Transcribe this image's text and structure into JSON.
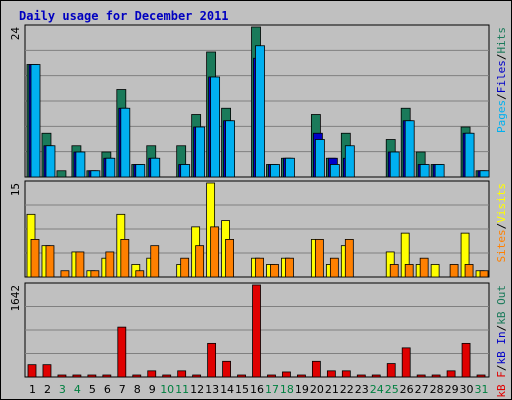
{
  "title": "Daily usage for December 2011",
  "colors": {
    "hits": "#1a7a5a",
    "files": "#0000c8",
    "pages": "#00b0f0",
    "visits": "#ffff00",
    "sites": "#ff8000",
    "kbytes": "#e00000",
    "background": "#c0c0c0",
    "grid": "#808080"
  },
  "chart_data": [
    {
      "type": "bar",
      "panel": "top",
      "ymax_label": "24",
      "legend": [
        {
          "label": "Pages",
          "color": "#00b0f0"
        },
        {
          "label": "Files",
          "color": "#0000c8"
        },
        {
          "label": "Hits",
          "color": "#1a7a5a"
        }
      ],
      "separator": "/",
      "ylim": [
        0,
        24
      ],
      "categories": [
        "1",
        "2",
        "3",
        "4",
        "5",
        "6",
        "7",
        "8",
        "9",
        "10",
        "11",
        "12",
        "13",
        "14",
        "15",
        "16",
        "17",
        "18",
        "19",
        "20",
        "21",
        "22",
        "23",
        "24",
        "25",
        "26",
        "27",
        "28",
        "29",
        "30",
        "31"
      ],
      "series": [
        {
          "name": "Hits",
          "values": [
            18,
            7,
            1,
            5,
            1,
            4,
            14,
            2,
            5,
            0,
            5,
            10,
            20,
            11,
            0,
            24,
            2,
            3,
            0,
            10,
            3,
            7,
            0,
            0,
            6,
            11,
            4,
            2,
            0,
            8,
            1
          ]
        },
        {
          "name": "Files",
          "values": [
            18,
            5,
            0,
            4,
            1,
            3,
            11,
            2,
            3,
            0,
            2,
            8,
            16,
            9,
            0,
            19,
            2,
            3,
            0,
            7,
            3,
            3,
            0,
            0,
            4,
            9,
            2,
            2,
            0,
            7,
            1
          ]
        },
        {
          "name": "Pages",
          "values": [
            18,
            5,
            0,
            4,
            1,
            3,
            11,
            2,
            3,
            0,
            2,
            8,
            16,
            9,
            0,
            21,
            2,
            3,
            0,
            6,
            2,
            5,
            0,
            0,
            4,
            9,
            2,
            2,
            0,
            7,
            1
          ]
        }
      ]
    },
    {
      "type": "bar",
      "panel": "middle",
      "ymax_label": "15",
      "legend": [
        {
          "label": "Sites",
          "color": "#ff8000"
        },
        {
          "label": "Visits",
          "color": "#ffff00"
        }
      ],
      "separator": "/",
      "ylim": [
        0,
        15
      ],
      "categories": [
        "1",
        "2",
        "3",
        "4",
        "5",
        "6",
        "7",
        "8",
        "9",
        "10",
        "11",
        "12",
        "13",
        "14",
        "15",
        "16",
        "17",
        "18",
        "19",
        "20",
        "21",
        "22",
        "23",
        "24",
        "25",
        "26",
        "27",
        "28",
        "29",
        "30",
        "31"
      ],
      "series": [
        {
          "name": "Visits",
          "values": [
            10,
            5,
            0,
            4,
            1,
            3,
            10,
            2,
            3,
            0,
            2,
            8,
            15,
            9,
            0,
            3,
            2,
            3,
            0,
            6,
            2,
            5,
            0,
            0,
            4,
            7,
            2,
            2,
            0,
            7,
            1
          ]
        },
        {
          "name": "Sites",
          "values": [
            6,
            5,
            1,
            4,
            1,
            4,
            6,
            1,
            5,
            0,
            3,
            5,
            8,
            6,
            0,
            3,
            2,
            3,
            0,
            6,
            3,
            6,
            0,
            0,
            2,
            2,
            3,
            0,
            2,
            2,
            1
          ]
        }
      ]
    },
    {
      "type": "bar",
      "panel": "bottom",
      "ymax_label": "1642",
      "legend": [
        {
          "label": "kB F",
          "color": "#e00000"
        },
        {
          "label": "kB In",
          "color": "#0000c8"
        },
        {
          "label": "kB Out",
          "color": "#1a7a5a"
        }
      ],
      "separator": "/",
      "ylim": [
        0,
        1642
      ],
      "categories": [
        "1",
        "2",
        "3",
        "4",
        "5",
        "6",
        "7",
        "8",
        "9",
        "10",
        "11",
        "12",
        "13",
        "14",
        "15",
        "16",
        "17",
        "18",
        "19",
        "20",
        "21",
        "22",
        "23",
        "24",
        "25",
        "26",
        "27",
        "28",
        "29",
        "30",
        "31"
      ],
      "series": [
        {
          "name": "kB F",
          "values": [
            220,
            220,
            25,
            25,
            25,
            25,
            890,
            25,
            110,
            25,
            110,
            25,
            600,
            280,
            25,
            1642,
            25,
            90,
            25,
            280,
            110,
            110,
            25,
            25,
            240,
            520,
            25,
            25,
            110,
            600,
            25
          ]
        }
      ]
    }
  ],
  "x_axis": {
    "labels": [
      "1",
      "2",
      "3",
      "4",
      "5",
      "6",
      "7",
      "8",
      "9",
      "10",
      "11",
      "12",
      "13",
      "14",
      "15",
      "16",
      "17",
      "18",
      "19",
      "20",
      "21",
      "22",
      "23",
      "24",
      "25",
      "26",
      "27",
      "28",
      "29",
      "30",
      "31"
    ],
    "weekend_days": [
      "3",
      "4",
      "10",
      "11",
      "17",
      "18",
      "24",
      "25",
      "31"
    ],
    "weekday_color": "#000000",
    "weekend_color": "#008040"
  }
}
